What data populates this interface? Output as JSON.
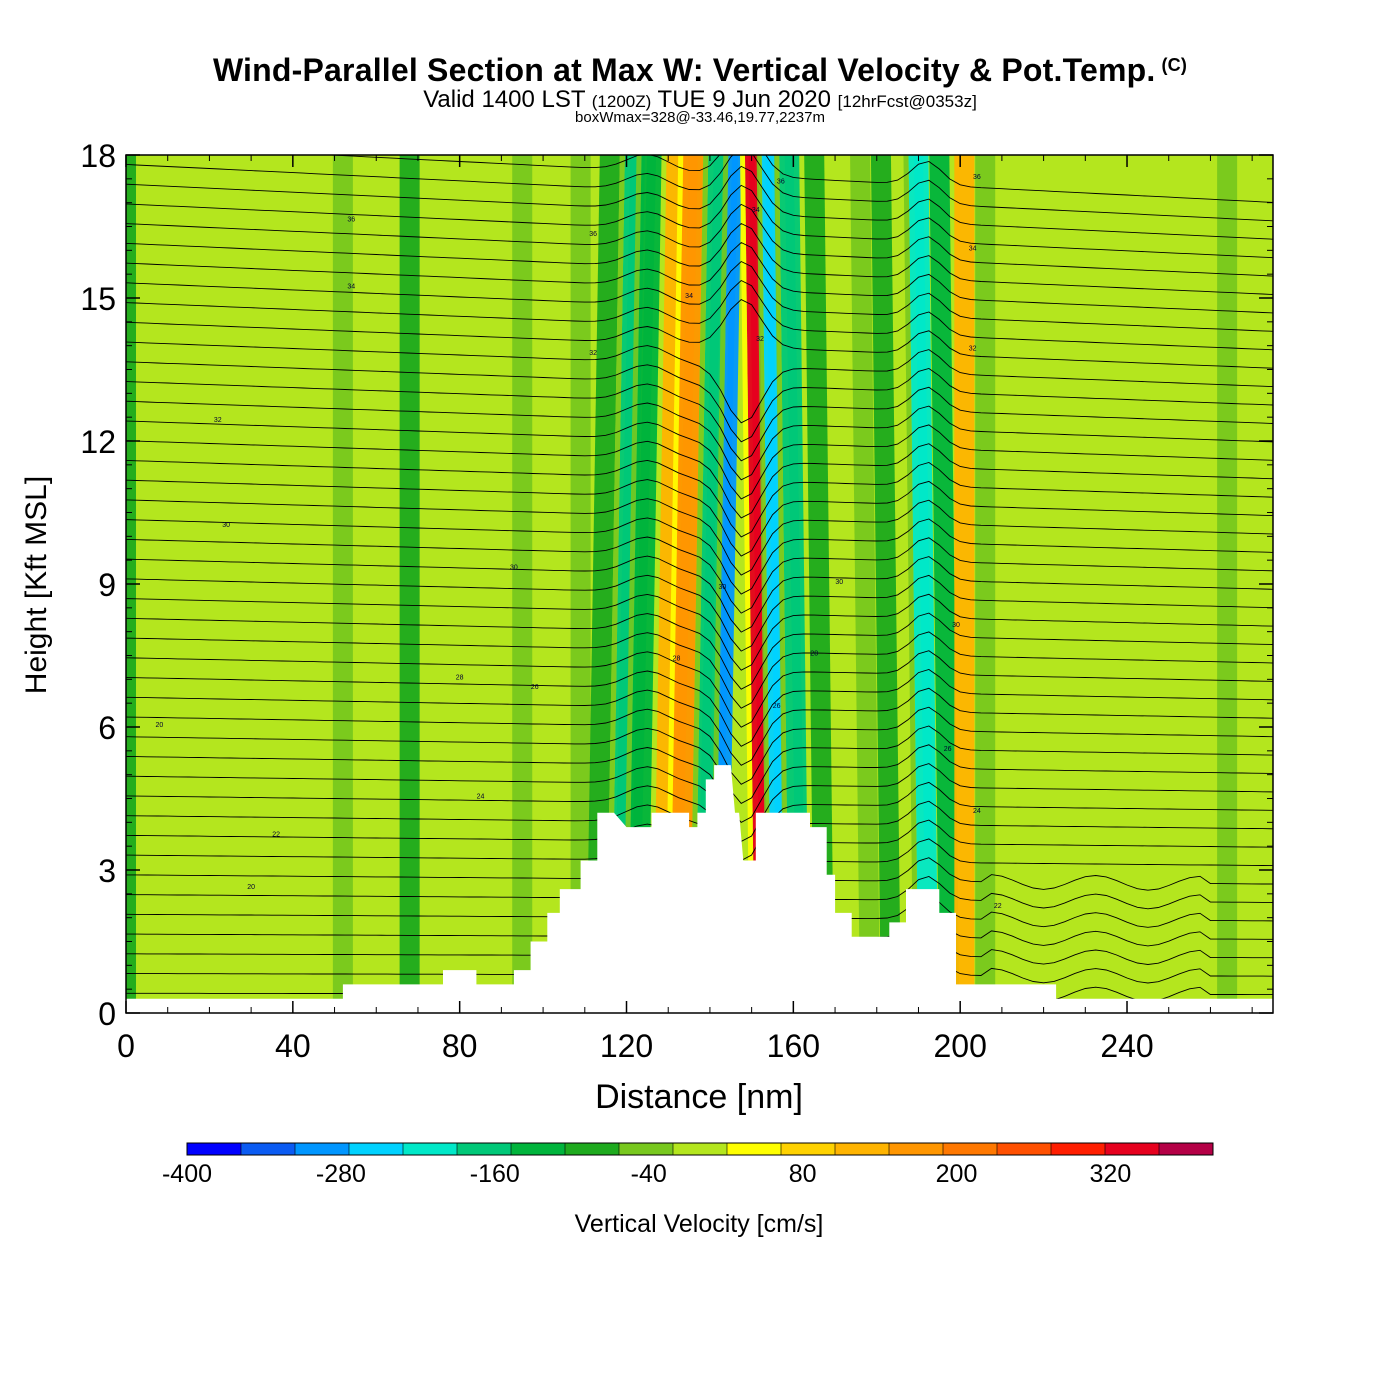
{
  "header": {
    "title": "Wind-Parallel Section at Max W: Vertical Velocity & Pot.Temp.",
    "copyright": "(C)",
    "valid_prefix": "Valid 1400 LST",
    "valid_utc": "(1200Z)",
    "valid_date": "TUE 9 Jun 2020",
    "forecast": "[12hrFcst@0353z]",
    "boxwmax": "boxWmax=328@-33.46,19.77,2237m"
  },
  "chart_data": {
    "type": "heatmap",
    "xlabel": "Distance [nm]",
    "ylabel": "Height [Kft MSL]",
    "xlim": [
      0,
      275
    ],
    "ylim": [
      0,
      18
    ],
    "xticks": [
      0,
      40,
      80,
      120,
      160,
      200,
      240
    ],
    "yticks": [
      0,
      3,
      6,
      9,
      12,
      15,
      18
    ],
    "colorbar": {
      "label": "Vertical Velocity [cm/s]",
      "range": [
        -400,
        400
      ],
      "tick_labels": [
        -400,
        -280,
        -160,
        -40,
        80,
        200,
        320
      ],
      "colors": [
        "#0000ff",
        "#0b5bf2",
        "#0096ff",
        "#00d2ff",
        "#00e8c8",
        "#00c878",
        "#00b43c",
        "#1eaa1e",
        "#78c81e",
        "#b4e61e",
        "#ffff00",
        "#ffd200",
        "#ffb400",
        "#ff9600",
        "#ff7800",
        "#ff5000",
        "#ff1e00",
        "#e6001e",
        "#b40046"
      ]
    },
    "vertical_velocity_bands": [
      {
        "x": 0,
        "w": -70
      },
      {
        "x": 52,
        "w": -60
      },
      {
        "x": 68,
        "w": -70
      },
      {
        "x": 95,
        "w": -50
      },
      {
        "x": 109,
        "w": -60
      },
      {
        "x": 116,
        "w": -100
      },
      {
        "x": 122,
        "w": -170
      },
      {
        "x": 126,
        "w": -130
      },
      {
        "x": 132,
        "w": 120
      },
      {
        "x": 136,
        "w": 160
      },
      {
        "x": 142,
        "w": -150
      },
      {
        "x": 146,
        "w": -290
      },
      {
        "x": 150,
        "w": 328
      },
      {
        "x": 154,
        "w": -250
      },
      {
        "x": 159,
        "w": -150
      },
      {
        "x": 165,
        "w": -70
      },
      {
        "x": 176,
        "w": -60
      },
      {
        "x": 181,
        "w": -90
      },
      {
        "x": 190,
        "w": -190
      },
      {
        "x": 195,
        "w": -120
      },
      {
        "x": 201,
        "w": 120
      },
      {
        "x": 206,
        "w": -60
      },
      {
        "x": 264,
        "w": -50
      }
    ],
    "terrain_height_kft": [
      [
        0,
        0.3
      ],
      [
        52,
        0.3
      ],
      [
        52,
        0.6
      ],
      [
        76,
        0.6
      ],
      [
        76,
        0.9
      ],
      [
        84,
        0.9
      ],
      [
        84,
        0.6
      ],
      [
        93,
        0.6
      ],
      [
        93,
        0.9
      ],
      [
        97,
        0.9
      ],
      [
        97,
        1.5
      ],
      [
        101,
        1.5
      ],
      [
        101,
        2.1
      ],
      [
        104,
        2.1
      ],
      [
        104,
        2.6
      ],
      [
        109,
        2.6
      ],
      [
        109,
        3.2
      ],
      [
        113,
        3.2
      ],
      [
        113,
        4.2
      ],
      [
        117,
        4.2
      ],
      [
        120,
        3.9
      ],
      [
        126,
        3.9
      ],
      [
        126,
        4.2
      ],
      [
        135,
        4.2
      ],
      [
        135,
        3.9
      ],
      [
        137,
        3.9
      ],
      [
        137,
        4.2
      ],
      [
        139,
        4.2
      ],
      [
        139,
        4.9
      ],
      [
        141,
        4.9
      ],
      [
        141,
        5.2
      ],
      [
        145,
        5.2
      ],
      [
        146,
        4.2
      ],
      [
        147,
        4.2
      ],
      [
        148,
        3.2
      ],
      [
        151,
        3.2
      ],
      [
        151,
        4.2
      ],
      [
        164,
        4.2
      ],
      [
        164,
        3.9
      ],
      [
        168,
        3.9
      ],
      [
        168,
        2.9
      ],
      [
        170,
        2.9
      ],
      [
        170,
        2.1
      ],
      [
        174,
        2.1
      ],
      [
        174,
        1.6
      ],
      [
        183,
        1.6
      ],
      [
        183,
        1.9
      ],
      [
        187,
        1.9
      ],
      [
        187,
        2.6
      ],
      [
        195,
        2.6
      ],
      [
        195,
        2.1
      ],
      [
        199,
        2.1
      ],
      [
        199,
        0.6
      ],
      [
        223,
        0.6
      ],
      [
        223,
        0.3
      ],
      [
        275,
        0.3
      ]
    ],
    "theta_contour_labels": [
      "20",
      "22",
      "24",
      "26",
      "28",
      "30",
      "32",
      "34",
      "36"
    ]
  }
}
